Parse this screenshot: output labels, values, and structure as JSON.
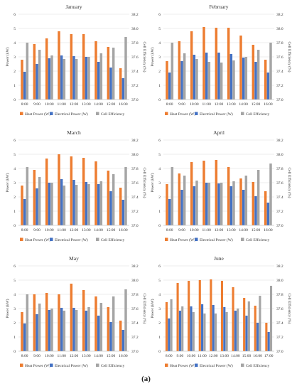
{
  "figure_label": "(a)",
  "colors": {
    "heat": "#ED7D31",
    "electrical": "#4472C4",
    "efficiency": "#A5A5A5",
    "grid": "#D9D9D9"
  },
  "chart_data": [
    {
      "type": "bar",
      "title": "January",
      "ylabel": "Power (kW)",
      "y2label": "Cell Efficiency (%)",
      "ylim": [
        0,
        6
      ],
      "y2lim": [
        37.0,
        38.2
      ],
      "categories": [
        "8:00",
        "9:00",
        "10:00",
        "11:00",
        "12:00",
        "13:00",
        "14:00",
        "15:00",
        "16:00"
      ],
      "series": [
        {
          "name": "Heat  Power (W)",
          "axis": "left",
          "values": [
            2.8,
            3.9,
            4.3,
            4.8,
            4.6,
            4.6,
            4.1,
            3.7,
            2.2
          ]
        },
        {
          "name": "Electrical  Power (W)",
          "axis": "left",
          "values": [
            1.95,
            2.5,
            2.9,
            3.1,
            3.05,
            3.0,
            2.65,
            2.25,
            1.5
          ]
        },
        {
          "name": "Cell Efficiency",
          "axis": "right",
          "values": [
            37.8,
            37.7,
            37.62,
            37.57,
            37.57,
            37.6,
            37.65,
            37.73,
            37.88
          ]
        }
      ],
      "legend": "bottom"
    },
    {
      "type": "bar",
      "title": "February",
      "ylabel": "Power (kW)",
      "y2label": "Cell Efficiency (%)",
      "ylim": [
        0,
        6
      ],
      "y2lim": [
        37.0,
        38.2
      ],
      "categories": [
        "8:00",
        "9:00",
        "10:00",
        "11:00",
        "12:00",
        "13:00",
        "14:00",
        "15:00",
        "16:00"
      ],
      "series": [
        {
          "name": "Heat  Power (W)",
          "axis": "left",
          "values": [
            2.7,
            4.1,
            4.8,
            5.1,
            5.05,
            5.05,
            4.5,
            3.85,
            2.8
          ]
        },
        {
          "name": "Electrical  Power (W)",
          "axis": "left",
          "values": [
            1.9,
            2.7,
            3.15,
            3.3,
            3.3,
            3.2,
            2.95,
            2.65,
            1.9
          ]
        },
        {
          "name": "Cell Efficiency",
          "axis": "right",
          "values": [
            37.8,
            37.65,
            37.57,
            37.53,
            37.52,
            37.55,
            37.6,
            37.7,
            37.8
          ]
        }
      ],
      "legend": "bottom"
    },
    {
      "type": "bar",
      "title": "March",
      "ylabel": "Power (kW)",
      "y2label": "Cell Efficiency (%)",
      "ylim": [
        0,
        6
      ],
      "y2lim": [
        37.0,
        38.2
      ],
      "categories": [
        "8:00",
        "9:00",
        "10:00",
        "11:00",
        "12:00",
        "13:00",
        "14:00",
        "15:00",
        "16:00"
      ],
      "series": [
        {
          "name": "Heat  Power (W)",
          "axis": "left",
          "values": [
            2.8,
            3.9,
            4.7,
            5.0,
            4.85,
            4.75,
            4.5,
            3.85,
            2.65
          ]
        },
        {
          "name": "Electrical  Power (W)",
          "axis": "left",
          "values": [
            1.85,
            2.6,
            3.0,
            3.25,
            3.2,
            3.05,
            2.9,
            2.4,
            1.8
          ]
        },
        {
          "name": "Cell Efficiency",
          "axis": "right",
          "values": [
            37.82,
            37.68,
            37.6,
            37.56,
            37.57,
            37.58,
            37.62,
            37.72,
            37.82
          ]
        }
      ],
      "legend": "bottom"
    },
    {
      "type": "bar",
      "title": "April",
      "ylabel": "Power (kW)",
      "y2label": "Cell Efficiency (%)",
      "ylim": [
        0,
        6
      ],
      "y2lim": [
        37.0,
        38.2
      ],
      "categories": [
        "8:00",
        "9:00",
        "10:00",
        "11:00",
        "12:00",
        "13:00",
        "14:00",
        "15:00",
        "16:00"
      ],
      "series": [
        {
          "name": "Heat  Power (W)",
          "axis": "left",
          "values": [
            2.9,
            3.65,
            4.45,
            4.55,
            4.6,
            4.1,
            3.3,
            3.05,
            2.4
          ]
        },
        {
          "name": "Electrical  Power (W)",
          "axis": "left",
          "values": [
            1.85,
            2.5,
            2.75,
            3.0,
            2.95,
            2.75,
            2.5,
            2.05,
            1.6
          ]
        },
        {
          "name": "Cell Efficiency",
          "axis": "right",
          "values": [
            37.82,
            37.7,
            37.63,
            37.6,
            37.6,
            37.62,
            37.7,
            37.78,
            37.87
          ]
        }
      ],
      "legend": "bottom"
    },
    {
      "type": "bar",
      "title": "May",
      "ylabel": "Power (kW)",
      "y2label": "Cell Efficiency (%)",
      "ylim": [
        0,
        6
      ],
      "y2lim": [
        37.0,
        38.2
      ],
      "categories": [
        "8:00",
        "9:00",
        "10:00",
        "11:00",
        "12:00",
        "13:00",
        "14:00",
        "15:00",
        "16:00"
      ],
      "series": [
        {
          "name": "Heat  Power (W)",
          "axis": "left",
          "values": [
            2.75,
            4.0,
            4.1,
            4.0,
            4.75,
            4.3,
            3.85,
            3.1,
            2.15
          ]
        },
        {
          "name": "Electrical  Power (W)",
          "axis": "left",
          "values": [
            1.95,
            2.6,
            2.9,
            3.05,
            3.05,
            2.85,
            2.5,
            2.05,
            1.5
          ]
        },
        {
          "name": "Cell Efficiency",
          "axis": "right",
          "values": [
            37.8,
            37.67,
            37.6,
            37.57,
            37.58,
            37.62,
            37.68,
            37.77,
            37.87
          ]
        }
      ],
      "legend": "bottom"
    },
    {
      "type": "bar",
      "title": "June",
      "ylabel": "Power (kW)",
      "y2label": "Cell Efficiency (%)",
      "ylim": [
        0,
        6
      ],
      "y2lim": [
        37.0,
        38.2
      ],
      "categories": [
        "8:00",
        "9:00",
        "10:00",
        "11:00",
        "12:00",
        "13:00",
        "14:00",
        "15:00",
        "16:00",
        "17:00"
      ],
      "series": [
        {
          "name": "Heat  Power (W)",
          "axis": "left",
          "values": [
            3.45,
            4.8,
            4.95,
            5.0,
            5.05,
            4.95,
            4.5,
            3.75,
            3.2,
            2.0
          ]
        },
        {
          "name": "Electrical  Power (W)",
          "axis": "left",
          "values": [
            2.3,
            2.85,
            3.15,
            3.3,
            3.25,
            3.1,
            2.85,
            2.5,
            2.0,
            1.35
          ]
        },
        {
          "name": "Cell Efficiency",
          "axis": "right",
          "values": [
            37.73,
            37.63,
            37.55,
            37.53,
            37.53,
            37.55,
            37.6,
            37.7,
            37.78,
            37.92
          ]
        }
      ],
      "legend": "bottom"
    }
  ]
}
